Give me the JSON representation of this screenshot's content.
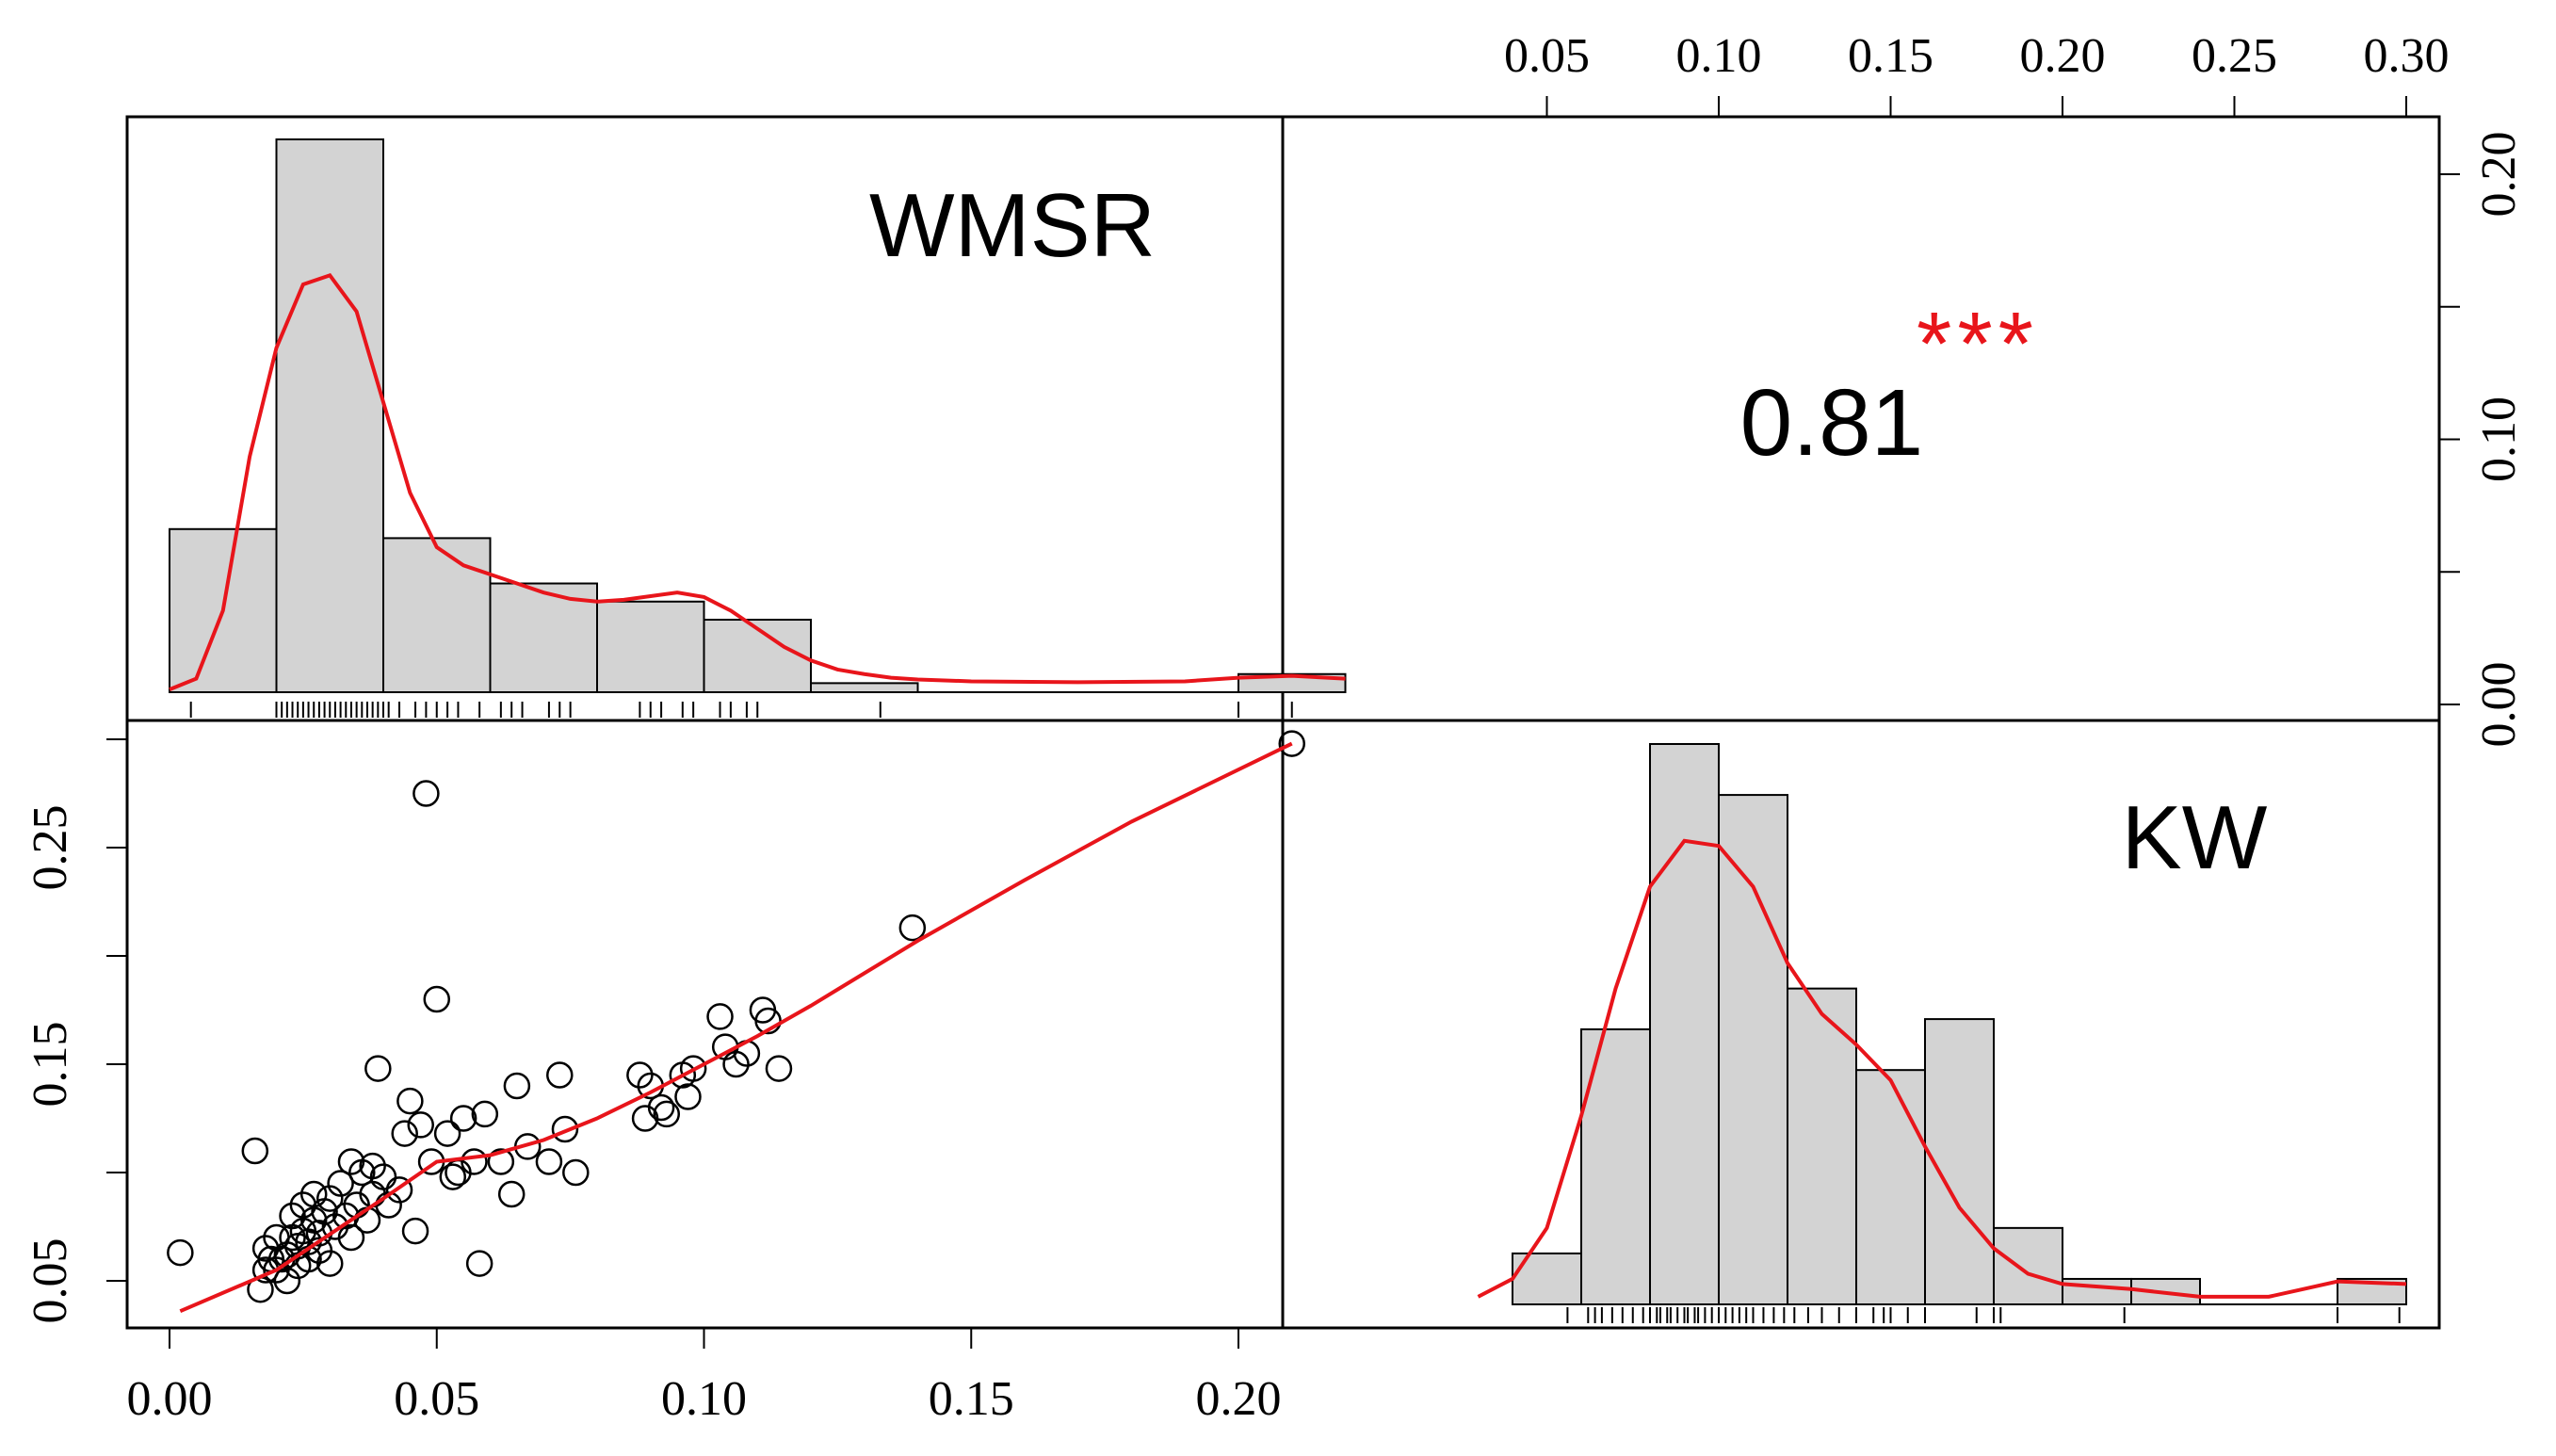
{
  "chart_data": {
    "type": "scatter-matrix",
    "variables": [
      "WMSR",
      "KW"
    ],
    "correlation": {
      "value": "0.81",
      "significance": "***"
    },
    "axes": {
      "wmsr_ticks": [
        "0.00",
        "0.05",
        "0.10",
        "0.15",
        "0.20"
      ],
      "kw_ticks_top": [
        "0.05",
        "0.10",
        "0.15",
        "0.20",
        "0.25",
        "0.30"
      ],
      "kw_ticks_left": [
        "0.05",
        "0.15",
        "0.25"
      ],
      "density_ticks_right": [
        "0.00",
        "0.10",
        "0.20"
      ],
      "wmsr_range": [
        0.0,
        0.22
      ],
      "kw_range": [
        0.03,
        0.3
      ],
      "density_range": [
        0.0,
        0.22
      ]
    },
    "histograms": {
      "WMSR": {
        "bins": [
          [
            0.0,
            0.02,
            18
          ],
          [
            0.02,
            0.04,
            61
          ],
          [
            0.04,
            0.06,
            17
          ],
          [
            0.06,
            0.08,
            12
          ],
          [
            0.08,
            0.1,
            10
          ],
          [
            0.1,
            0.12,
            8
          ],
          [
            0.12,
            0.14,
            1
          ],
          [
            0.14,
            0.16,
            0
          ],
          [
            0.16,
            0.18,
            0
          ],
          [
            0.18,
            0.2,
            0
          ],
          [
            0.2,
            0.22,
            2
          ]
        ],
        "density": [
          [
            0.0,
            0.3
          ],
          [
            0.005,
            1.5
          ],
          [
            0.01,
            9
          ],
          [
            0.015,
            26
          ],
          [
            0.02,
            38
          ],
          [
            0.025,
            45
          ],
          [
            0.03,
            46
          ],
          [
            0.035,
            42
          ],
          [
            0.04,
            32
          ],
          [
            0.045,
            22
          ],
          [
            0.05,
            16
          ],
          [
            0.055,
            14
          ],
          [
            0.06,
            13
          ],
          [
            0.065,
            12
          ],
          [
            0.07,
            11
          ],
          [
            0.075,
            10.3
          ],
          [
            0.08,
            10
          ],
          [
            0.085,
            10.2
          ],
          [
            0.09,
            10.6
          ],
          [
            0.095,
            11
          ],
          [
            0.1,
            10.5
          ],
          [
            0.105,
            9
          ],
          [
            0.11,
            7
          ],
          [
            0.115,
            5
          ],
          [
            0.12,
            3.5
          ],
          [
            0.125,
            2.5
          ],
          [
            0.13,
            2
          ],
          [
            0.135,
            1.6
          ],
          [
            0.14,
            1.4
          ],
          [
            0.145,
            1.3
          ],
          [
            0.15,
            1.2
          ],
          [
            0.17,
            1.1
          ],
          [
            0.19,
            1.2
          ],
          [
            0.2,
            1.6
          ],
          [
            0.21,
            1.8
          ],
          [
            0.22,
            1.5
          ]
        ]
      },
      "KW": {
        "bins": [
          [
            0.04,
            0.06,
            10
          ],
          [
            0.06,
            0.08,
            54
          ],
          [
            0.08,
            0.1,
            110
          ],
          [
            0.1,
            0.12,
            100
          ],
          [
            0.12,
            0.14,
            62
          ],
          [
            0.14,
            0.16,
            46
          ],
          [
            0.16,
            0.18,
            56
          ],
          [
            0.18,
            0.2,
            15
          ],
          [
            0.2,
            0.22,
            5
          ],
          [
            0.22,
            0.24,
            5
          ],
          [
            0.24,
            0.26,
            0
          ],
          [
            0.26,
            0.28,
            0
          ],
          [
            0.28,
            0.3,
            5
          ]
        ],
        "density": [
          [
            0.03,
            1.5
          ],
          [
            0.04,
            5
          ],
          [
            0.05,
            15
          ],
          [
            0.06,
            37
          ],
          [
            0.07,
            62
          ],
          [
            0.08,
            82
          ],
          [
            0.09,
            91
          ],
          [
            0.1,
            90
          ],
          [
            0.11,
            82
          ],
          [
            0.12,
            67
          ],
          [
            0.13,
            57
          ],
          [
            0.14,
            51
          ],
          [
            0.15,
            44
          ],
          [
            0.16,
            31
          ],
          [
            0.17,
            19
          ],
          [
            0.18,
            11
          ],
          [
            0.19,
            6
          ],
          [
            0.2,
            4
          ],
          [
            0.22,
            3
          ],
          [
            0.24,
            1.5
          ],
          [
            0.26,
            1.5
          ],
          [
            0.27,
            3
          ],
          [
            0.28,
            4.5
          ],
          [
            0.3,
            4
          ]
        ]
      }
    },
    "scatter": {
      "x_variable": "WMSR",
      "y_variable": "KW",
      "points": [
        [
          0.002,
          0.063
        ],
        [
          0.016,
          0.11
        ],
        [
          0.017,
          0.046
        ],
        [
          0.018,
          0.055
        ],
        [
          0.018,
          0.065
        ],
        [
          0.019,
          0.06
        ],
        [
          0.02,
          0.07
        ],
        [
          0.02,
          0.055
        ],
        [
          0.021,
          0.06
        ],
        [
          0.022,
          0.05
        ],
        [
          0.022,
          0.062
        ],
        [
          0.023,
          0.07
        ],
        [
          0.023,
          0.08
        ],
        [
          0.024,
          0.057
        ],
        [
          0.024,
          0.066
        ],
        [
          0.025,
          0.073
        ],
        [
          0.025,
          0.085
        ],
        [
          0.026,
          0.06
        ],
        [
          0.026,
          0.068
        ],
        [
          0.027,
          0.09
        ],
        [
          0.027,
          0.078
        ],
        [
          0.028,
          0.064
        ],
        [
          0.028,
          0.072
        ],
        [
          0.029,
          0.082
        ],
        [
          0.03,
          0.088
        ],
        [
          0.03,
          0.058
        ],
        [
          0.031,
          0.075
        ],
        [
          0.032,
          0.095
        ],
        [
          0.033,
          0.08
        ],
        [
          0.034,
          0.07
        ],
        [
          0.034,
          0.105
        ],
        [
          0.035,
          0.085
        ],
        [
          0.036,
          0.1
        ],
        [
          0.037,
          0.078
        ],
        [
          0.038,
          0.09
        ],
        [
          0.038,
          0.103
        ],
        [
          0.039,
          0.148
        ],
        [
          0.04,
          0.098
        ],
        [
          0.041,
          0.085
        ],
        [
          0.043,
          0.092
        ],
        [
          0.044,
          0.118
        ],
        [
          0.045,
          0.133
        ],
        [
          0.046,
          0.073
        ],
        [
          0.047,
          0.122
        ],
        [
          0.048,
          0.275
        ],
        [
          0.049,
          0.105
        ],
        [
          0.05,
          0.18
        ],
        [
          0.052,
          0.118
        ],
        [
          0.053,
          0.098
        ],
        [
          0.054,
          0.1
        ],
        [
          0.055,
          0.125
        ],
        [
          0.057,
          0.105
        ],
        [
          0.058,
          0.058
        ],
        [
          0.059,
          0.127
        ],
        [
          0.062,
          0.105
        ],
        [
          0.064,
          0.09
        ],
        [
          0.065,
          0.14
        ],
        [
          0.067,
          0.112
        ],
        [
          0.071,
          0.105
        ],
        [
          0.073,
          0.145
        ],
        [
          0.074,
          0.12
        ],
        [
          0.076,
          0.1
        ],
        [
          0.088,
          0.145
        ],
        [
          0.089,
          0.125
        ],
        [
          0.09,
          0.14
        ],
        [
          0.092,
          0.13
        ],
        [
          0.093,
          0.127
        ],
        [
          0.096,
          0.145
        ],
        [
          0.097,
          0.135
        ],
        [
          0.098,
          0.148
        ],
        [
          0.103,
          0.172
        ],
        [
          0.104,
          0.158
        ],
        [
          0.106,
          0.15
        ],
        [
          0.108,
          0.155
        ],
        [
          0.111,
          0.175
        ],
        [
          0.112,
          0.17
        ],
        [
          0.114,
          0.148
        ],
        [
          0.139,
          0.213
        ],
        [
          0.21,
          0.298
        ]
      ],
      "smooth": [
        [
          0.002,
          0.036
        ],
        [
          0.02,
          0.055
        ],
        [
          0.04,
          0.088
        ],
        [
          0.05,
          0.105
        ],
        [
          0.06,
          0.108
        ],
        [
          0.07,
          0.115
        ],
        [
          0.08,
          0.125
        ],
        [
          0.09,
          0.137
        ],
        [
          0.1,
          0.15
        ],
        [
          0.11,
          0.163
        ],
        [
          0.12,
          0.177
        ],
        [
          0.14,
          0.207
        ],
        [
          0.16,
          0.235
        ],
        [
          0.18,
          0.262
        ],
        [
          0.21,
          0.298
        ]
      ]
    },
    "rug": {
      "WMSR": [
        0.004,
        0.02,
        0.021,
        0.022,
        0.023,
        0.024,
        0.025,
        0.026,
        0.027,
        0.028,
        0.029,
        0.03,
        0.031,
        0.032,
        0.033,
        0.034,
        0.035,
        0.036,
        0.037,
        0.038,
        0.039,
        0.04,
        0.041,
        0.043,
        0.046,
        0.048,
        0.05,
        0.052,
        0.054,
        0.058,
        0.062,
        0.064,
        0.066,
        0.071,
        0.073,
        0.075,
        0.088,
        0.09,
        0.092,
        0.096,
        0.098,
        0.103,
        0.105,
        0.108,
        0.11,
        0.133,
        0.2,
        0.21
      ],
      "KW": [
        0.056,
        0.062,
        0.064,
        0.066,
        0.069,
        0.072,
        0.075,
        0.078,
        0.08,
        0.082,
        0.083,
        0.085,
        0.086,
        0.088,
        0.09,
        0.091,
        0.093,
        0.094,
        0.096,
        0.098,
        0.1,
        0.102,
        0.104,
        0.106,
        0.108,
        0.11,
        0.113,
        0.116,
        0.119,
        0.122,
        0.126,
        0.13,
        0.135,
        0.14,
        0.145,
        0.148,
        0.15,
        0.155,
        0.16,
        0.175,
        0.18,
        0.182,
        0.218,
        0.28,
        0.298
      ]
    }
  }
}
